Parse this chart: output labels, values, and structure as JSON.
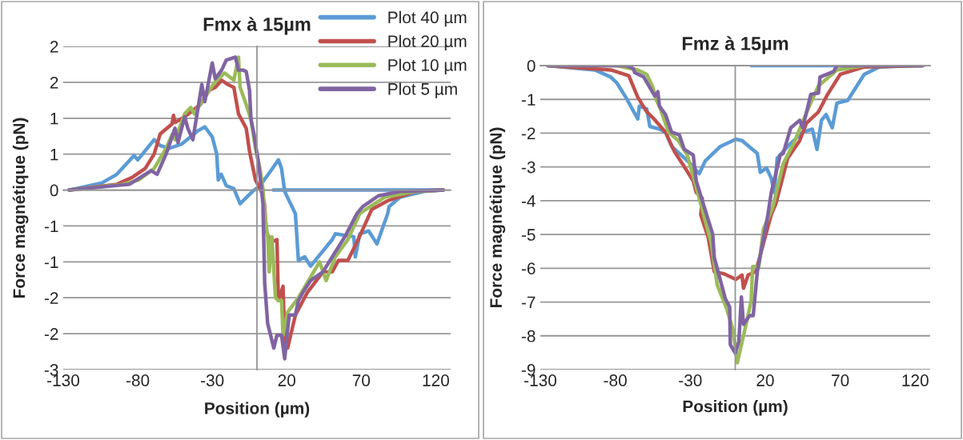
{
  "chart_data": [
    {
      "type": "line",
      "title": "Fmx à 15µm",
      "xlabel": "Position (µm)",
      "ylabel": "Force magnétique (pN)",
      "xlim": [
        -130,
        130
      ],
      "xticks": [
        -130,
        -80,
        -30,
        20,
        70,
        120
      ],
      "ylim": [
        -2.5,
        2
      ],
      "yticks": [
        {
          "value": 2,
          "label": "2"
        },
        {
          "value": 1.5,
          "label": "2"
        },
        {
          "value": 1,
          "label": "1"
        },
        {
          "value": 0.5,
          "label": "1"
        },
        {
          "value": 0,
          "label": "0"
        },
        {
          "value": -0.5,
          "label": "-1"
        },
        {
          "value": -1,
          "label": "-1"
        },
        {
          "value": -1.5,
          "label": "-2"
        },
        {
          "value": -2,
          "label": "-2"
        },
        {
          "value": -2.5,
          "label": "-3"
        }
      ],
      "grid": "y",
      "legend": "top right",
      "marker": "none",
      "line_style": "solid",
      "series": [
        {
          "name": "Plot 40 µm",
          "color": "#5b9bd5",
          "x": [
            -126,
            -104,
            -94,
            -82.5,
            -80,
            -69,
            -65,
            -59,
            -50.5,
            -40,
            -35,
            -30,
            -27,
            -26,
            -24,
            -20.6,
            -15.5,
            -11.3,
            -3,
            2,
            9,
            14.4,
            16.5,
            18.6,
            25.8,
            27.8,
            32,
            36,
            50.5,
            52.6,
            65,
            66,
            69,
            75,
            80.5,
            87.7,
            88.7,
            96,
            112,
            125,
            11
          ],
          "values": [
            0,
            0.1,
            0.22,
            0.48,
            0.42,
            0.7,
            0.62,
            0.58,
            0.64,
            0.82,
            0.88,
            0.74,
            0.5,
            0.14,
            0.22,
            0.06,
            0.02,
            -0.19,
            -0.02,
            0.06,
            0.26,
            0.42,
            0.3,
            -0.02,
            -0.33,
            -0.98,
            -0.93,
            -1.06,
            -0.69,
            -0.61,
            -0.65,
            -0.93,
            -0.61,
            -0.57,
            -0.75,
            -0.33,
            -0.23,
            -0.1,
            -0.02,
            0,
            0
          ]
        },
        {
          "name": "Plot 20 µm",
          "color": "#c0504d",
          "x": [
            -126,
            -94,
            -83.5,
            -75,
            -69,
            -65,
            -57,
            -56,
            -55,
            -48.5,
            -38,
            -32,
            -28,
            -23.7,
            -19.6,
            -15.5,
            -12.4,
            -7.2,
            -5,
            -1,
            3,
            5,
            6.2,
            9.3,
            13.4,
            14.4,
            17.5,
            18.6,
            20.6,
            25.8,
            34,
            44.3,
            50.5,
            54.7,
            61,
            67,
            74,
            77,
            87.7,
            106,
            125
          ],
          "values": [
            0,
            0.08,
            0.18,
            0.3,
            0.5,
            0.78,
            0.92,
            1.04,
            0.94,
            1.02,
            1.19,
            1.39,
            1.43,
            1.53,
            1.47,
            1.43,
            1.06,
            0.86,
            0.54,
            0.14,
            -0.02,
            -0.19,
            -0.57,
            -0.73,
            -0.69,
            -1.54,
            -1.34,
            -2.1,
            -2.2,
            -1.74,
            -1.42,
            -1.14,
            -1.14,
            -0.98,
            -0.98,
            -0.73,
            -0.41,
            -0.27,
            -0.15,
            -0.02,
            0
          ]
        },
        {
          "name": "Plot 10 µm",
          "color": "#9bbb59",
          "x": [
            -126,
            -90,
            -79.4,
            -69,
            -61,
            -56.7,
            -55,
            -48.5,
            -44.4,
            -42,
            -36,
            -28,
            -21.7,
            -15.5,
            -12.4,
            -11.3,
            -7.2,
            -4,
            -1,
            2,
            4,
            5.2,
            7.2,
            8.2,
            10,
            12.4,
            14.4,
            16.5,
            17.5,
            20.6,
            27.8,
            42,
            46.4,
            52.6,
            61,
            69,
            73,
            85.6,
            106,
            125
          ],
          "values": [
            0,
            0.08,
            0.14,
            0.3,
            0.58,
            0.78,
            0.7,
            1.06,
            1.15,
            1.06,
            1.27,
            1.51,
            1.63,
            1.53,
            1.85,
            1.43,
            1.19,
            0.98,
            0.58,
            0.3,
            0.02,
            -0.33,
            -0.65,
            -1.14,
            -0.65,
            -1.5,
            -1.54,
            -1.54,
            -2.02,
            -1.7,
            -1.5,
            -1.0,
            -1.26,
            -0.93,
            -0.69,
            -0.33,
            -0.27,
            -0.1,
            -0.02,
            0
          ]
        },
        {
          "name": "Plot 5 µm",
          "color": "#8064a2",
          "x": [
            -126,
            -85.6,
            -75,
            -71,
            -67,
            -61,
            -55,
            -53,
            -48.5,
            -46.4,
            -43,
            -37,
            -35,
            -30,
            -28,
            -23.7,
            -20.6,
            -14.4,
            -12.4,
            -9.3,
            -7.2,
            -5,
            -4,
            -2,
            1,
            3,
            4,
            5.2,
            7.2,
            11.3,
            13.4,
            16.5,
            18.6,
            20.6,
            21.7,
            25.8,
            27.8,
            31,
            36,
            44.3,
            50.5,
            59,
            67,
            71,
            81.5,
            96,
            125
          ],
          "values": [
            0,
            0.08,
            0.22,
            0.27,
            0.22,
            0.5,
            0.86,
            0.66,
            1.02,
            0.86,
            0.7,
            1.47,
            1.23,
            1.77,
            1.55,
            1.67,
            1.81,
            1.85,
            1.67,
            1.67,
            1.65,
            1.39,
            0.98,
            0.78,
            0.38,
            0.02,
            -0.19,
            -1.3,
            -1.86,
            -2.2,
            -2.02,
            -2.02,
            -2.35,
            -1.94,
            -1.74,
            -1.74,
            -1.54,
            -1.42,
            -1.26,
            -1.14,
            -0.93,
            -0.65,
            -0.33,
            -0.23,
            -0.08,
            -0.02,
            0
          ]
        }
      ]
    },
    {
      "type": "line",
      "title": "Fmz à 15µm",
      "xlabel": "Position (µm)",
      "ylabel": "Force magnétique (pN)",
      "xlim": [
        -130,
        130
      ],
      "xticks": [
        -130,
        -80,
        -30,
        20,
        70,
        120
      ],
      "ylim": [
        -9,
        0
      ],
      "yticks": [
        0,
        -1,
        -2,
        -3,
        -4,
        -5,
        -6,
        -7,
        -8,
        -9
      ],
      "grid": "y",
      "marker": "none",
      "line_style": "solid",
      "series": [
        {
          "color": "#5b9bd5",
          "x": [
            -125,
            -93.5,
            -83,
            -79,
            -73,
            -65,
            -64,
            -59,
            -57,
            -50.6,
            -46.5,
            -42.5,
            -36,
            -30,
            -24,
            -20,
            -9.8,
            0.4,
            4.5,
            14.7,
            16.7,
            20.8,
            24,
            26,
            28,
            35,
            45,
            51.4,
            54.5,
            57.5,
            60.6,
            64.7,
            67.8,
            75,
            86,
            96,
            119,
            125,
            10.6
          ],
          "values": [
            0,
            -0.13,
            -0.34,
            -0.51,
            -0.94,
            -1.58,
            -1.2,
            -1.28,
            -1.8,
            -1.88,
            -1.97,
            -2.39,
            -2.65,
            -2.9,
            -3.2,
            -2.82,
            -2.39,
            -2.18,
            -2.22,
            -2.6,
            -3.16,
            -3.03,
            -3.33,
            -3.76,
            -2.74,
            -2.39,
            -1.97,
            -1.88,
            -2.48,
            -1.62,
            -1.45,
            -1.84,
            -1.11,
            -1.03,
            -0.26,
            -0.04,
            0,
            0,
            0
          ]
        },
        {
          "color": "#c0504d",
          "x": [
            -125,
            -83,
            -71,
            -65,
            -59,
            -55,
            -46.5,
            -40.4,
            -34,
            -28,
            -26,
            -22,
            -23,
            -18,
            -14,
            -7.8,
            0.4,
            4.5,
            5.5,
            8.6,
            13.7,
            18.8,
            24,
            27,
            35,
            43,
            47.4,
            55.5,
            61.6,
            70,
            86,
            125
          ],
          "values": [
            0,
            -0.13,
            -0.3,
            -0.94,
            -1.37,
            -1.54,
            -1.97,
            -2.56,
            -2.99,
            -3.42,
            -3.76,
            -3.93,
            -4.41,
            -5.1,
            -6.1,
            -6.16,
            -6.33,
            -6.2,
            -6.59,
            -6.2,
            -6.1,
            -5.26,
            -4.41,
            -4.1,
            -2.74,
            -2.22,
            -1.71,
            -1.37,
            -0.85,
            -0.26,
            -0.04,
            0
          ]
        },
        {
          "color": "#9bbb59",
          "x": [
            -125,
            -79,
            -65,
            -59,
            -55,
            -52.6,
            -50.6,
            -44.5,
            -38,
            -32,
            -24,
            -16,
            -12,
            -5.7,
            -1.6,
            1.4,
            6.5,
            10.6,
            11.6,
            15.7,
            18.8,
            25,
            32,
            39,
            49.4,
            55.5,
            67.8,
            86,
            125
          ],
          "values": [
            0,
            0,
            -0.13,
            -0.26,
            -0.64,
            -1.03,
            -1.2,
            -1.97,
            -2.22,
            -2.65,
            -3.93,
            -5.26,
            -6.5,
            -7.2,
            -7.8,
            -8.8,
            -7.8,
            -6.97,
            -5.95,
            -5.95,
            -4.84,
            -4.2,
            -2.9,
            -2.3,
            -1.2,
            -0.6,
            -0.13,
            0,
            0
          ]
        },
        {
          "color": "#8064a2",
          "x": [
            -125,
            -73,
            -68,
            -67,
            -61,
            -53.7,
            -51.6,
            -50.6,
            -46.5,
            -42.5,
            -37.3,
            -34,
            -28,
            -26,
            -15,
            -14,
            -6.7,
            -3.7,
            -3.3,
            0,
            2.4,
            4.1,
            5.5,
            9.6,
            12,
            14.7,
            21.8,
            24,
            30,
            32,
            37,
            43,
            45,
            50.4,
            55.5,
            56.5,
            65.7,
            67.8,
            125
          ],
          "values": [
            0,
            0,
            -0.09,
            -0.21,
            -0.34,
            -0.9,
            -0.77,
            -1.2,
            -1.45,
            -1.97,
            -2.05,
            -2.48,
            -2.65,
            -3.42,
            -5.0,
            -5.68,
            -6.89,
            -7.15,
            -8.26,
            -8.51,
            -8.17,
            -6.85,
            -7.66,
            -7.4,
            -7.4,
            -6.1,
            -4.41,
            -3.76,
            -2.65,
            -2.6,
            -1.84,
            -1.62,
            -1.84,
            -0.85,
            -0.81,
            -0.34,
            -0.17,
            0,
            0
          ]
        }
      ]
    }
  ]
}
